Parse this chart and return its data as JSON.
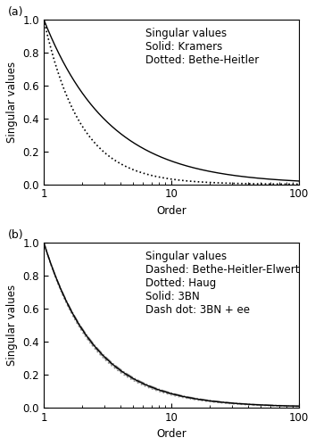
{
  "title_a": "Singular values\nSolid: Kramers\nDotted: Bethe-Heitler",
  "title_b": "Singular values\nDashed: Bethe-Heitler-Elwert\nDotted: Haug\nSolid: 3BN\nDash dot: 3BN + ee",
  "ylabel": "Singular values",
  "xlabel": "Order",
  "xlim": [
    1,
    100
  ],
  "ylim": [
    0.0,
    1.0
  ],
  "panel_a_label": "(a)",
  "panel_b_label": "(b)",
  "kramers_alpha": 0.85,
  "bh_alpha": 1.5,
  "bhe_alpha": 1.1,
  "haug_alpha": 1.12,
  "bn3_alpha": 1.08,
  "bn3ee_alpha": 1.06,
  "line_color": "black",
  "gray_color": "#888888",
  "text_color": "black",
  "bg_color": "white",
  "fontsize": 8.5,
  "label_fontsize": 9
}
